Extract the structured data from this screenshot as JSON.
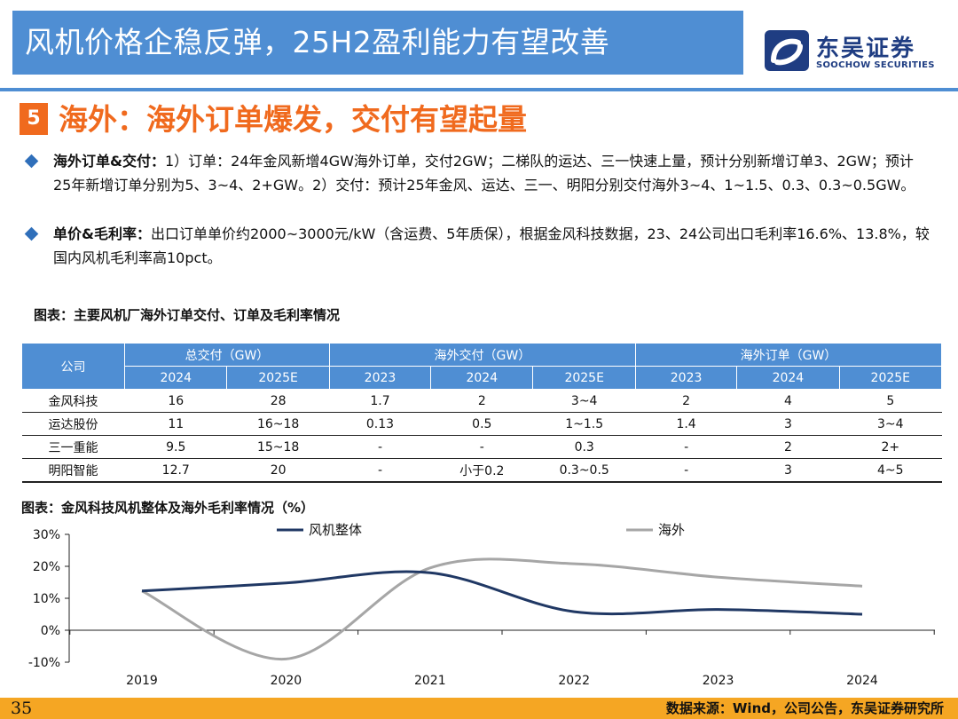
{
  "header": {
    "title": "风机价格企稳反弹，25H2盈利能力有望改善",
    "logo_cn": "东吴证券",
    "logo_en": "SOOCHOW SECURITIES",
    "bar_color": "#4f8ed3"
  },
  "section": {
    "number": "5",
    "title": "海外：海外订单爆发，交付有望起量",
    "accent_color": "#f06a1e"
  },
  "bullets": [
    {
      "label": "海外订单&交付：",
      "text": "1）订单：24年金风新增4GW海外订单，交付2GW；二梯队的运达、三一快速上量，预计分别新增订单3、2GW；预计25年新增订单分别为5、3~4、2+GW。2）交付：预计25年金风、运达、三一、明阳分别交付海外3~4、1~1.5、0.3、0.3~0.5GW。"
    },
    {
      "label": "单价&毛利率：",
      "text": "出口订单单价约2000~3000元/kW（含运费、5年质保），根据金风科技数据，23、24公司出口毛利率16.6%、13.8%，较国内风机毛利率高10pct。"
    }
  ],
  "table": {
    "caption": "图表：主要风机厂海外订单交付、订单及毛利率情况",
    "company_header": "公司",
    "groups": [
      {
        "label": "总交付（GW）",
        "years": [
          "2024",
          "2025E"
        ]
      },
      {
        "label": "海外交付（GW）",
        "years": [
          "2023",
          "2024",
          "2025E"
        ]
      },
      {
        "label": "海外订单（GW）",
        "years": [
          "2023",
          "2024",
          "2025E"
        ]
      }
    ],
    "rows": [
      {
        "company": "金风科技",
        "cells": [
          "16",
          "28",
          "1.7",
          "2",
          "3~4",
          "2",
          "4",
          "5"
        ]
      },
      {
        "company": "运达股份",
        "cells": [
          "11",
          "16~18",
          "0.13",
          "0.5",
          "1~1.5",
          "1.4",
          "3",
          "3~4"
        ]
      },
      {
        "company": "三一重能",
        "cells": [
          "9.5",
          "15~18",
          "-",
          "-",
          "0.3",
          "-",
          "2",
          "2+"
        ]
      },
      {
        "company": "明阳智能",
        "cells": [
          "12.7",
          "20",
          "-",
          "小于0.2",
          "0.3~0.5",
          "-",
          "3",
          "4~5"
        ]
      }
    ]
  },
  "chart": {
    "caption": "图表：金风科技风机整体及海外毛利率情况（%）"
  },
  "chart_data": {
    "type": "line",
    "x": [
      "2019",
      "2020",
      "2021",
      "2022",
      "2023",
      "2024"
    ],
    "ylim": [
      -10,
      30
    ],
    "yticks": [
      "30%",
      "20%",
      "10%",
      "0%",
      "-10%"
    ],
    "ytick_values": [
      30,
      20,
      10,
      0,
      -10
    ],
    "legend_position": "top",
    "grid": false,
    "series": [
      {
        "name": "风机整体",
        "color": "#203864",
        "values": [
          12.3,
          14.8,
          18.0,
          5.8,
          6.5,
          5.0
        ]
      },
      {
        "name": "海外",
        "color": "#a6a6a6",
        "values": [
          12.3,
          -9.0,
          19.5,
          20.8,
          16.6,
          13.8
        ]
      }
    ]
  },
  "footer": {
    "page": "35",
    "source": "数据来源：Wind，公司公告，东吴证券研究所"
  }
}
